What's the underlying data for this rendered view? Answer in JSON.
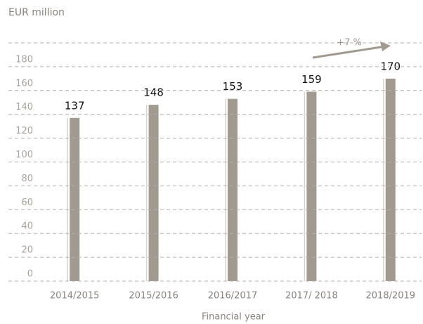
{
  "chart_data": {
    "type": "bar",
    "y_label": "EUR million",
    "x_label": "Financial year",
    "categories": [
      "2014/2015",
      "2015/2016",
      "2016/2017",
      "2017/ 2018",
      "2018/2019"
    ],
    "values": [
      137,
      148,
      153,
      159,
      170
    ],
    "color": "#a29990",
    "ylim": [
      0,
      200
    ],
    "yticks": [
      0,
      20,
      40,
      60,
      80,
      100,
      120,
      140,
      160,
      180
    ],
    "grid": true,
    "annotation": "+7 %"
  }
}
